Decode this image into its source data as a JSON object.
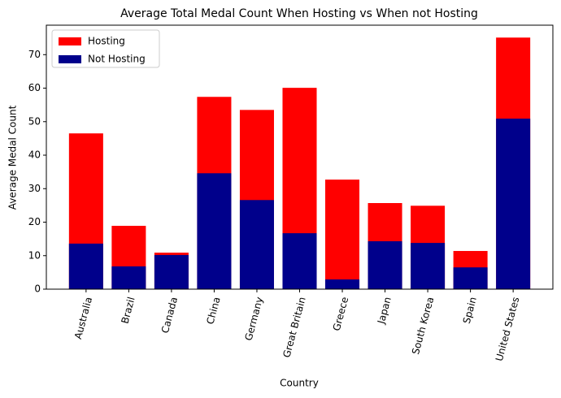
{
  "chart_data": {
    "type": "bar",
    "title": "Average Total Medal Count When Hosting vs When not Hosting",
    "x_label": "Country",
    "y_label": "Average Medal Count",
    "categories": [
      "Australia",
      "Brazil",
      "Canada",
      "China",
      "Germany",
      "Great Britain",
      "Greece",
      "Japan",
      "South Korea",
      "Spain",
      "United States"
    ],
    "series": [
      {
        "name": "Hosting",
        "color": "#ff0000",
        "values": [
          46.5,
          18.9,
          10.9,
          57.4,
          53.5,
          60.1,
          32.7,
          25.7,
          24.9,
          11.4,
          75.1
        ]
      },
      {
        "name": "Not Hosting",
        "color": "#00008b",
        "values": [
          13.6,
          6.8,
          10.2,
          34.6,
          26.6,
          16.7,
          2.9,
          14.3,
          13.8,
          6.5,
          50.9
        ]
      }
    ],
    "ylim": [
      0,
      78.8
    ],
    "yticks": [
      0,
      10,
      20,
      30,
      40,
      50,
      60,
      70
    ],
    "legend": "upper left"
  }
}
